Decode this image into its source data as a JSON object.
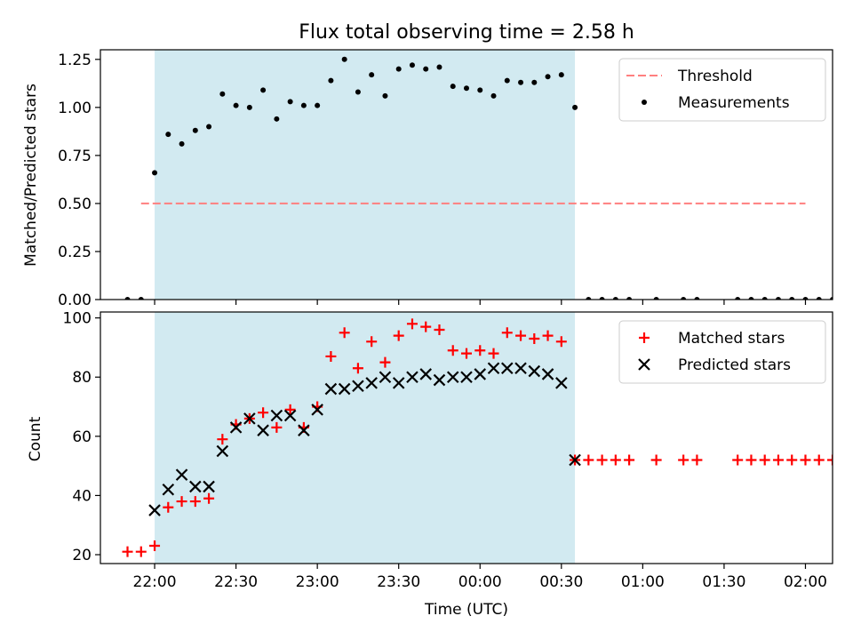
{
  "chart_data": [
    {
      "type": "scatter",
      "title": "Flux total observing time = 2.58 h",
      "ylabel": "Matched/Predicted stars",
      "xlabel": "",
      "ylim": [
        0,
        1.3
      ],
      "yticks": [
        "0.00",
        "0.25",
        "0.50",
        "0.75",
        "1.00",
        "1.25"
      ],
      "legend_position": "top-right",
      "series": [
        {
          "name": "Threshold",
          "style": "dashed-line",
          "color": "#ff7f7f",
          "x": [
            "21:55",
            "02:00"
          ],
          "y": [
            0.5,
            0.5
          ]
        },
        {
          "name": "Measurements",
          "style": "dot",
          "color": "#000000",
          "x": [
            "21:50",
            "21:55",
            "22:00",
            "22:05",
            "22:10",
            "22:15",
            "22:20",
            "22:25",
            "22:30",
            "22:35",
            "22:40",
            "22:45",
            "22:50",
            "22:55",
            "23:00",
            "23:05",
            "23:10",
            "23:15",
            "23:20",
            "23:25",
            "23:30",
            "23:35",
            "23:40",
            "23:45",
            "23:50",
            "23:55",
            "00:00",
            "00:05",
            "00:10",
            "00:15",
            "00:20",
            "00:25",
            "00:30",
            "00:35",
            "00:40",
            "00:45",
            "00:50",
            "00:55",
            "01:05",
            "01:15",
            "01:20",
            "01:35",
            "01:40",
            "01:45",
            "01:50",
            "01:55",
            "02:00",
            "02:05",
            "02:10"
          ],
          "y": [
            0,
            0,
            0.66,
            0.86,
            0.81,
            0.88,
            0.9,
            1.07,
            1.01,
            1.0,
            1.09,
            0.94,
            1.03,
            1.01,
            1.01,
            1.14,
            1.25,
            1.08,
            1.17,
            1.06,
            1.2,
            1.22,
            1.2,
            1.21,
            1.11,
            1.1,
            1.09,
            1.06,
            1.14,
            1.13,
            1.13,
            1.16,
            1.17,
            1.0,
            0,
            0,
            0,
            0,
            0,
            0,
            0,
            0,
            0,
            0,
            0,
            0,
            0,
            0,
            0
          ]
        }
      ]
    },
    {
      "type": "scatter",
      "xlabel": "Time (UTC)",
      "ylabel": "Count",
      "ylim": [
        17,
        102
      ],
      "yticks": [
        "20",
        "40",
        "60",
        "80",
        "100"
      ],
      "xticks": [
        "22:00",
        "22:30",
        "23:00",
        "23:30",
        "00:00",
        "00:30",
        "01:00",
        "01:30",
        "02:00"
      ],
      "legend_position": "top-right",
      "series": [
        {
          "name": "Matched stars",
          "style": "plus",
          "color": "#ff0000",
          "x": [
            "21:50",
            "21:55",
            "22:00",
            "22:05",
            "22:10",
            "22:15",
            "22:20",
            "22:25",
            "22:30",
            "22:35",
            "22:40",
            "22:45",
            "22:50",
            "22:55",
            "23:00",
            "23:05",
            "23:10",
            "23:15",
            "23:20",
            "23:25",
            "23:30",
            "23:35",
            "23:40",
            "23:45",
            "23:50",
            "23:55",
            "00:00",
            "00:05",
            "00:10",
            "00:15",
            "00:20",
            "00:25",
            "00:30",
            "00:35",
            "00:40",
            "00:45",
            "00:50",
            "00:55",
            "01:05",
            "01:15",
            "01:20",
            "01:35",
            "01:40",
            "01:45",
            "01:50",
            "01:55",
            "02:00",
            "02:05",
            "02:10"
          ],
          "y": [
            21,
            21,
            23,
            36,
            38,
            38,
            39,
            59,
            64,
            66,
            68,
            63,
            69,
            63,
            70,
            87,
            95,
            83,
            92,
            85,
            94,
            98,
            97,
            96,
            89,
            88,
            89,
            88,
            95,
            94,
            93,
            94,
            92,
            52,
            52,
            52,
            52,
            52,
            52,
            52,
            52,
            52,
            52,
            52,
            52,
            52,
            52,
            52,
            52
          ]
        },
        {
          "name": "Predicted stars",
          "style": "x",
          "color": "#000000",
          "x": [
            "22:00",
            "22:05",
            "22:10",
            "22:15",
            "22:20",
            "22:25",
            "22:30",
            "22:35",
            "22:40",
            "22:45",
            "22:50",
            "22:55",
            "23:00",
            "23:05",
            "23:10",
            "23:15",
            "23:20",
            "23:25",
            "23:30",
            "23:35",
            "23:40",
            "23:45",
            "23:50",
            "23:55",
            "00:00",
            "00:05",
            "00:10",
            "00:15",
            "00:20",
            "00:25",
            "00:30",
            "00:35"
          ],
          "y": [
            35,
            42,
            47,
            43,
            43,
            55,
            63,
            66,
            62,
            67,
            67,
            62,
            69,
            76,
            76,
            77,
            78,
            80,
            78,
            80,
            81,
            79,
            80,
            80,
            81,
            83,
            83,
            83,
            82,
            81,
            78,
            52
          ]
        }
      ]
    }
  ],
  "shaded_region": {
    "color": "#add8e6",
    "x_start": "22:00",
    "x_end": "00:35"
  }
}
